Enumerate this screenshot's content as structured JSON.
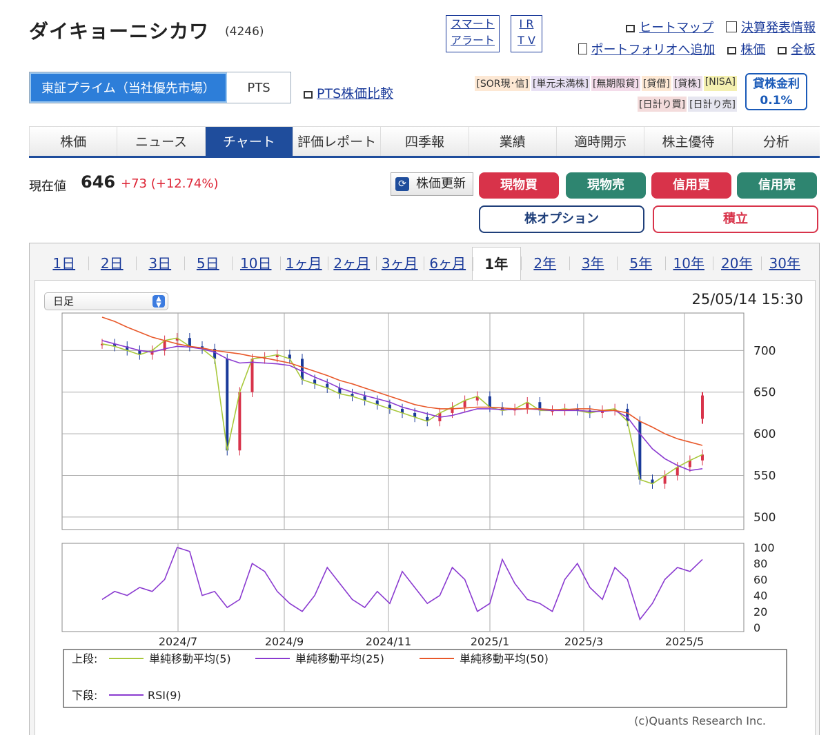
{
  "header": {
    "company_name": "ダイキョーニシカワ",
    "code": "(4246)",
    "smart_alert": [
      "スマート",
      "アラート"
    ],
    "irtv": [
      "I R",
      "T V"
    ],
    "links_row1": [
      "ヒートマップ",
      "決算発表情報"
    ],
    "links_row2": [
      "ポートフォリオへ追加",
      "株価",
      "全板"
    ]
  },
  "market": {
    "tabs": [
      "東証プライム（当社優先市場）",
      "PTS"
    ],
    "pts_compare": "PTS株価比較",
    "badges_row1": [
      "[SOR現･信]",
      "[単元未満株]",
      "[無期限貸]",
      "[貸借]",
      "[貸株]",
      "[NISA]"
    ],
    "badges_row2": [
      "[日計り買]",
      "[日計り売]"
    ],
    "lending_label": "貸株金利",
    "lending_rate": "0.1%"
  },
  "nav": {
    "tabs": [
      "株価",
      "ニュース",
      "チャート",
      "評価レポート",
      "四季報",
      "業績",
      "適時開示",
      "株主優待",
      "分析"
    ],
    "active": "チャート"
  },
  "quote": {
    "label": "現在値",
    "price": "646",
    "change": "+73 (+12.74%)"
  },
  "actions": {
    "refresh": "株価更新",
    "genbutsu_buy": "現物買",
    "genbutsu_sell": "現物売",
    "shinyo_buy": "信用買",
    "shinyo_sell": "信用売",
    "option": "株オプション",
    "tsumitate": "積立"
  },
  "chart_panel": {
    "periods": [
      "1日",
      "2日",
      "3日",
      "5日",
      "10日",
      "1ヶ月",
      "2ヶ月",
      "3ヶ月",
      "6ヶ月",
      "1年",
      "2年",
      "3年",
      "5年",
      "10年",
      "20年",
      "30年"
    ],
    "active_period": "1年",
    "interval": "日足",
    "timestamp": "25/05/14 15:30",
    "copyright": "(c)Quants Research Inc."
  },
  "chart_data": [
    {
      "type": "line",
      "panel": "upper",
      "x_ticks": [
        "2024/7",
        "2024/9",
        "2024/11",
        "2025/1",
        "2025/3",
        "2025/5"
      ],
      "y_ticks": [
        500,
        550,
        600,
        650,
        700
      ],
      "ylim": [
        485,
        745
      ],
      "legend_prefix": "上段:",
      "series": [
        {
          "name": "単純移動平均(5)",
          "color": "#a8c83a",
          "values": [
            708,
            705,
            700,
            695,
            700,
            712,
            715,
            705,
            702,
            690,
            580,
            650,
            690,
            692,
            695,
            690,
            665,
            660,
            655,
            648,
            645,
            640,
            635,
            630,
            625,
            620,
            615,
            625,
            632,
            640,
            645,
            632,
            628,
            630,
            638,
            628,
            628,
            630,
            628,
            625,
            628,
            630,
            615,
            545,
            540,
            550,
            560,
            568,
            575
          ]
        },
        {
          "name": "単純移動平均(25)",
          "color": "#8a3ad0",
          "values": [
            712,
            708,
            704,
            700,
            698,
            702,
            705,
            704,
            702,
            698,
            690,
            685,
            686,
            685,
            684,
            682,
            675,
            668,
            662,
            655,
            650,
            646,
            642,
            638,
            632,
            628,
            624,
            620,
            622,
            626,
            630,
            630,
            629,
            629,
            630,
            629,
            628,
            628,
            628,
            627,
            627,
            628,
            620,
            600,
            582,
            570,
            562,
            556,
            558
          ]
        },
        {
          "name": "単純移動平均(50)",
          "color": "#e8582a",
          "values": [
            740,
            735,
            728,
            722,
            716,
            712,
            708,
            705,
            703,
            700,
            698,
            696,
            693,
            691,
            688,
            685,
            680,
            675,
            670,
            664,
            660,
            655,
            650,
            645,
            640,
            635,
            632,
            630,
            630,
            631,
            632,
            632,
            631,
            630,
            630,
            630,
            629,
            629,
            630,
            630,
            628,
            628,
            625,
            615,
            608,
            600,
            594,
            590,
            586
          ]
        }
      ]
    },
    {
      "type": "line",
      "panel": "lower",
      "y_ticks": [
        0,
        20,
        40,
        60,
        80,
        100
      ],
      "ylim": [
        0,
        100
      ],
      "legend_prefix": "下段:",
      "series": [
        {
          "name": "RSI(9)",
          "color": "#8a3ad0",
          "values": [
            35,
            45,
            40,
            50,
            45,
            60,
            100,
            95,
            40,
            45,
            25,
            35,
            80,
            70,
            45,
            30,
            20,
            40,
            75,
            55,
            35,
            25,
            45,
            30,
            70,
            50,
            30,
            40,
            75,
            60,
            20,
            30,
            85,
            55,
            35,
            30,
            20,
            60,
            80,
            50,
            35,
            75,
            60,
            10,
            30,
            60,
            75,
            70,
            85
          ]
        }
      ]
    }
  ]
}
